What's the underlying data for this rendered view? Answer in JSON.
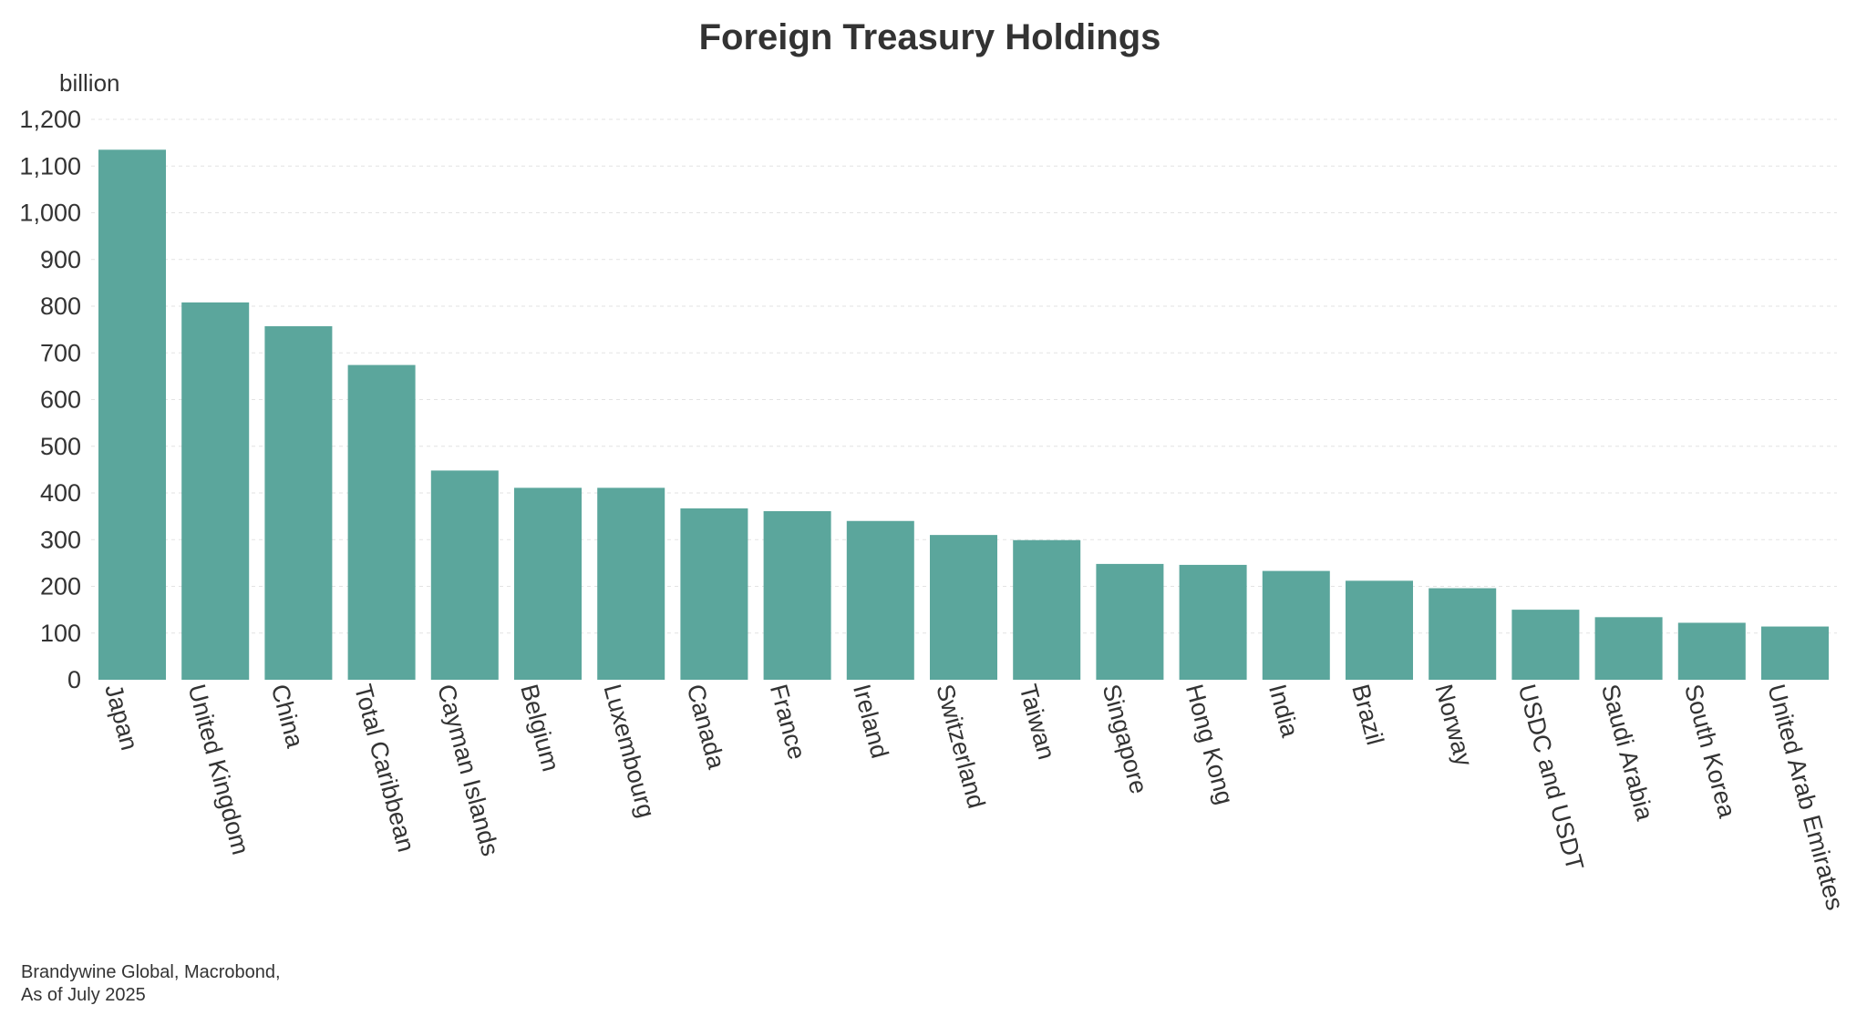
{
  "chart_data": {
    "type": "bar",
    "title": "Foreign Treasury Holdings",
    "ylabel": "billion",
    "xlabel": "",
    "ylim": [
      0,
      1200
    ],
    "yticks": [
      0,
      100,
      200,
      300,
      400,
      500,
      600,
      700,
      800,
      900,
      1000,
      1100,
      1200
    ],
    "grid": true,
    "color": "#5ba69c",
    "categories": [
      "Japan",
      "United Kingdom",
      "China",
      "Total Caribbean",
      "Cayman Islands",
      "Belgium",
      "Luxembourg",
      "Canada",
      "France",
      "Ireland",
      "Switzerland",
      "Taiwan",
      "Singapore",
      "Hong Kong",
      "India",
      "Brazil",
      "Norway",
      "USDC and USDT",
      "Saudi Arabia",
      "South Korea",
      "United Arab Emirates"
    ],
    "values": [
      1135,
      808,
      757,
      674,
      448,
      411,
      411,
      367,
      361,
      340,
      310,
      299,
      248,
      246,
      233,
      212,
      196,
      150,
      134,
      122,
      114
    ]
  },
  "source": {
    "line1": "Brandywine Global, Macrobond,",
    "line2": "As of July 2025"
  }
}
